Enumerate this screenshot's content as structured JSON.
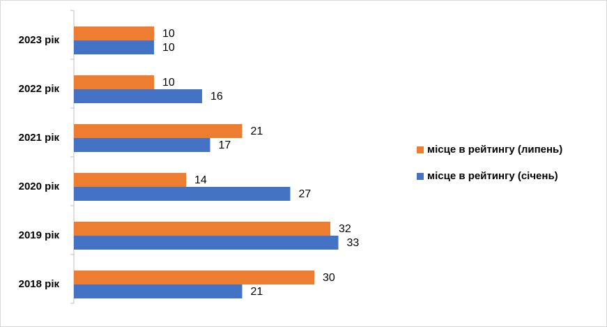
{
  "chart_data": {
    "type": "hbar",
    "categories": [
      "2023 рік",
      "2022 рік",
      "2021 рік",
      "2020 рік",
      "2019 рік",
      "2018 рік"
    ],
    "series": [
      {
        "name": "місце в рейтингу (липень)",
        "color": "#ed7d31",
        "values": [
          10,
          10,
          21,
          14,
          32,
          30
        ]
      },
      {
        "name": "місце в рейтингу (січень)",
        "color": "#4472c4",
        "values": [
          10,
          16,
          17,
          27,
          33,
          21
        ]
      }
    ]
  }
}
